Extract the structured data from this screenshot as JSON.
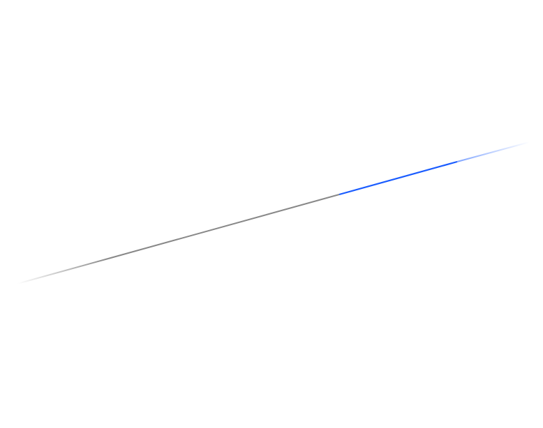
{
  "line": {
    "colors": {
      "primary": "#888888",
      "accent": "#1a5cff"
    }
  }
}
